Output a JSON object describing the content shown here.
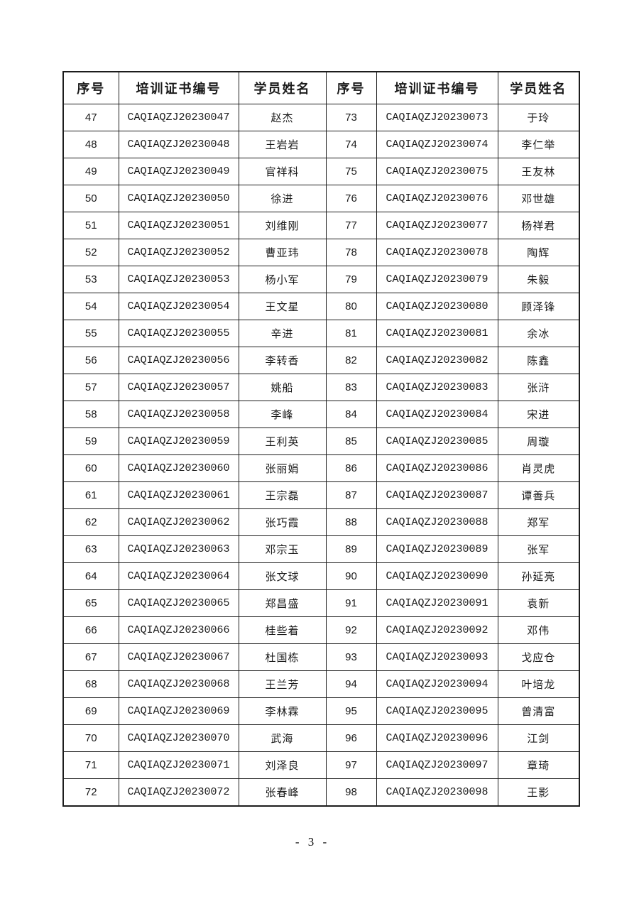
{
  "table": {
    "headers": [
      "序号",
      "培训证书编号",
      "学员姓名",
      "序号",
      "培训证书编号",
      "学员姓名"
    ],
    "rows": [
      [
        "47",
        "CAQIAQZJ20230047",
        "赵杰",
        "73",
        "CAQIAQZJ20230073",
        "于玲"
      ],
      [
        "48",
        "CAQIAQZJ20230048",
        "王岩岩",
        "74",
        "CAQIAQZJ20230074",
        "李仁举"
      ],
      [
        "49",
        "CAQIAQZJ20230049",
        "官祥科",
        "75",
        "CAQIAQZJ20230075",
        "王友林"
      ],
      [
        "50",
        "CAQIAQZJ20230050",
        "徐进",
        "76",
        "CAQIAQZJ20230076",
        "邓世雄"
      ],
      [
        "51",
        "CAQIAQZJ20230051",
        "刘维刚",
        "77",
        "CAQIAQZJ20230077",
        "杨祥君"
      ],
      [
        "52",
        "CAQIAQZJ20230052",
        "曹亚玮",
        "78",
        "CAQIAQZJ20230078",
        "陶辉"
      ],
      [
        "53",
        "CAQIAQZJ20230053",
        "杨小军",
        "79",
        "CAQIAQZJ20230079",
        "朱毅"
      ],
      [
        "54",
        "CAQIAQZJ20230054",
        "王文星",
        "80",
        "CAQIAQZJ20230080",
        "顾泽锋"
      ],
      [
        "55",
        "CAQIAQZJ20230055",
        "辛进",
        "81",
        "CAQIAQZJ20230081",
        "余冰"
      ],
      [
        "56",
        "CAQIAQZJ20230056",
        "李转香",
        "82",
        "CAQIAQZJ20230082",
        "陈鑫"
      ],
      [
        "57",
        "CAQIAQZJ20230057",
        "姚船",
        "83",
        "CAQIAQZJ20230083",
        "张浒"
      ],
      [
        "58",
        "CAQIAQZJ20230058",
        "李峰",
        "84",
        "CAQIAQZJ20230084",
        "宋进"
      ],
      [
        "59",
        "CAQIAQZJ20230059",
        "王利英",
        "85",
        "CAQIAQZJ20230085",
        "周璇"
      ],
      [
        "60",
        "CAQIAQZJ20230060",
        "张丽娟",
        "86",
        "CAQIAQZJ20230086",
        "肖灵虎"
      ],
      [
        "61",
        "CAQIAQZJ20230061",
        "王宗磊",
        "87",
        "CAQIAQZJ20230087",
        "谭善兵"
      ],
      [
        "62",
        "CAQIAQZJ20230062",
        "张巧霞",
        "88",
        "CAQIAQZJ20230088",
        "郑军"
      ],
      [
        "63",
        "CAQIAQZJ20230063",
        "邓宗玉",
        "89",
        "CAQIAQZJ20230089",
        "张军"
      ],
      [
        "64",
        "CAQIAQZJ20230064",
        "张文球",
        "90",
        "CAQIAQZJ20230090",
        "孙延亮"
      ],
      [
        "65",
        "CAQIAQZJ20230065",
        "郑昌盛",
        "91",
        "CAQIAQZJ20230091",
        "袁新"
      ],
      [
        "66",
        "CAQIAQZJ20230066",
        "桂些着",
        "92",
        "CAQIAQZJ20230092",
        "邓伟"
      ],
      [
        "67",
        "CAQIAQZJ20230067",
        "杜国栋",
        "93",
        "CAQIAQZJ20230093",
        "戈应仓"
      ],
      [
        "68",
        "CAQIAQZJ20230068",
        "王兰芳",
        "94",
        "CAQIAQZJ20230094",
        "叶培龙"
      ],
      [
        "69",
        "CAQIAQZJ20230069",
        "李林霖",
        "95",
        "CAQIAQZJ20230095",
        "曾清富"
      ],
      [
        "70",
        "CAQIAQZJ20230070",
        "武海",
        "96",
        "CAQIAQZJ20230096",
        "江剑"
      ],
      [
        "71",
        "CAQIAQZJ20230071",
        "刘泽良",
        "97",
        "CAQIAQZJ20230097",
        "章琦"
      ],
      [
        "72",
        "CAQIAQZJ20230072",
        "张春峰",
        "98",
        "CAQIAQZJ20230098",
        "王影"
      ]
    ]
  },
  "footer": {
    "page_number_label": "- 3 -"
  },
  "colors": {
    "page_background": "#ffffff",
    "border": "#1c1c1c",
    "text": "#1a1a1a"
  }
}
